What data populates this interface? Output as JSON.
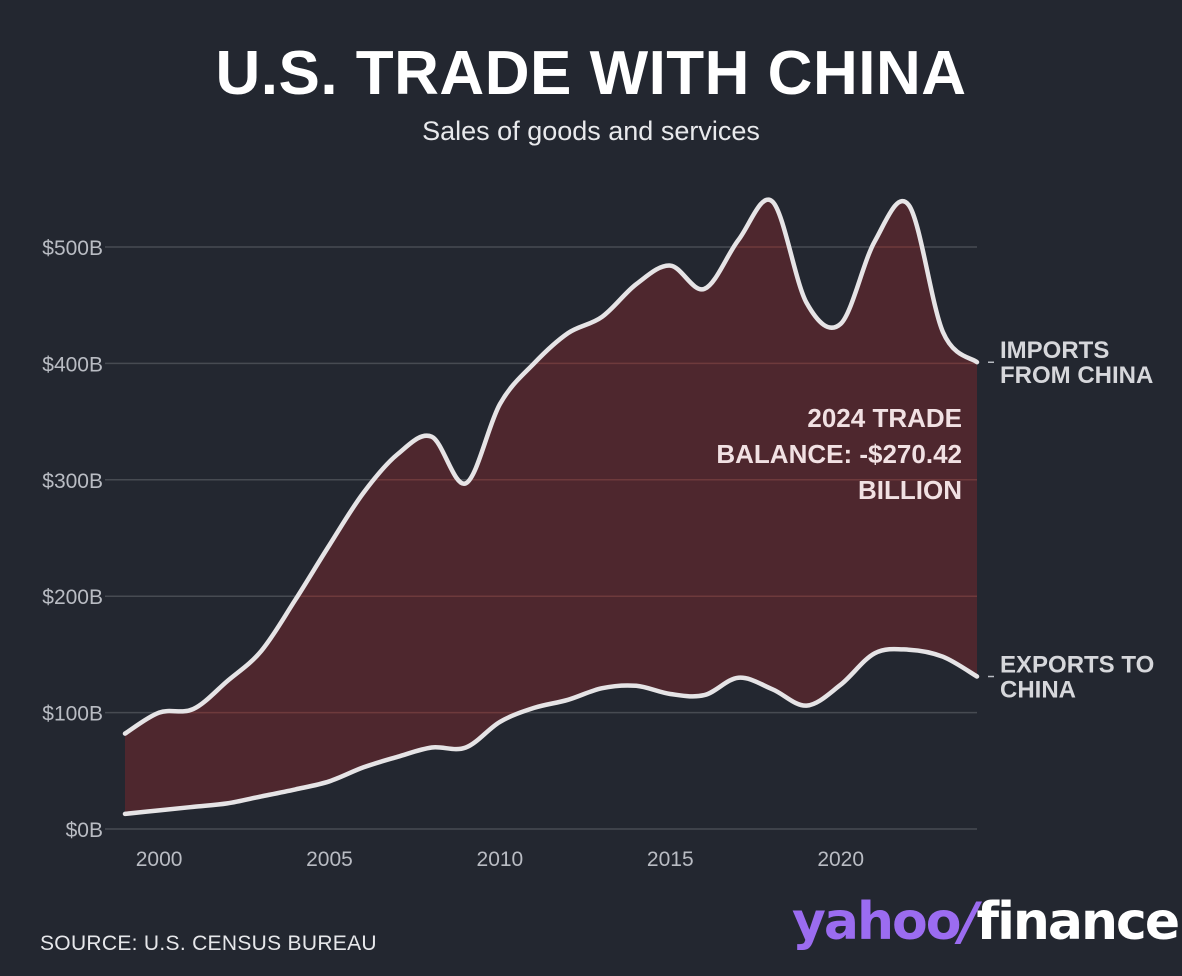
{
  "colors": {
    "background": "#232730",
    "area_fill": "#4e272e",
    "line": "#e6e4e6",
    "grid": "#474b52",
    "grid_inside_area": "#6e3a3c",
    "brand_purple": "#9b6cf0"
  },
  "chart_data": {
    "type": "area",
    "title": "U.S. TRADE WITH CHINA",
    "subtitle": "Sales of goods and services",
    "xlabel": "",
    "ylabel": "",
    "xlim": [
      1999,
      2024
    ],
    "ylim": [
      0,
      540
    ],
    "x_ticks": [
      2000,
      2005,
      2010,
      2015,
      2020
    ],
    "x_tick_labels": [
      "2000",
      "2005",
      "2010",
      "2015",
      "2020"
    ],
    "y_ticks": [
      0,
      100,
      200,
      300,
      400,
      500
    ],
    "y_tick_labels": [
      "$0B",
      "$100B",
      "$200B",
      "$300B",
      "$400B",
      "$500B"
    ],
    "grid": true,
    "fill_between": true,
    "x": [
      1999,
      2000,
      2001,
      2002,
      2003,
      2004,
      2005,
      2006,
      2007,
      2008,
      2009,
      2010,
      2011,
      2012,
      2013,
      2014,
      2015,
      2016,
      2017,
      2018,
      2019,
      2020,
      2021,
      2022,
      2023,
      2024
    ],
    "series": [
      {
        "label": "IMPORTS FROM CHINA",
        "values": [
          82,
          100,
          103,
          127,
          153,
          197,
          244,
          289,
          322,
          337,
          297,
          365,
          400,
          426,
          440,
          468,
          484,
          464,
          506,
          539,
          452,
          434,
          505,
          536,
          427,
          401
        ]
      },
      {
        "label": "EXPORTS TO CHINA",
        "values": [
          13,
          16,
          19,
          22,
          28,
          34,
          41,
          53,
          62,
          70,
          70,
          92,
          104,
          111,
          121,
          123,
          116,
          115,
          130,
          120,
          106,
          124,
          151,
          154,
          148,
          131
        ]
      }
    ],
    "annotation": [
      "2024 TRADE",
      "BALANCE: -$270.42",
      "BILLION"
    ]
  },
  "source_text": "SOURCE: U.S. CENSUS BUREAU",
  "logo": {
    "part1": "yahoo",
    "slash": "/",
    "part2": "finance"
  }
}
